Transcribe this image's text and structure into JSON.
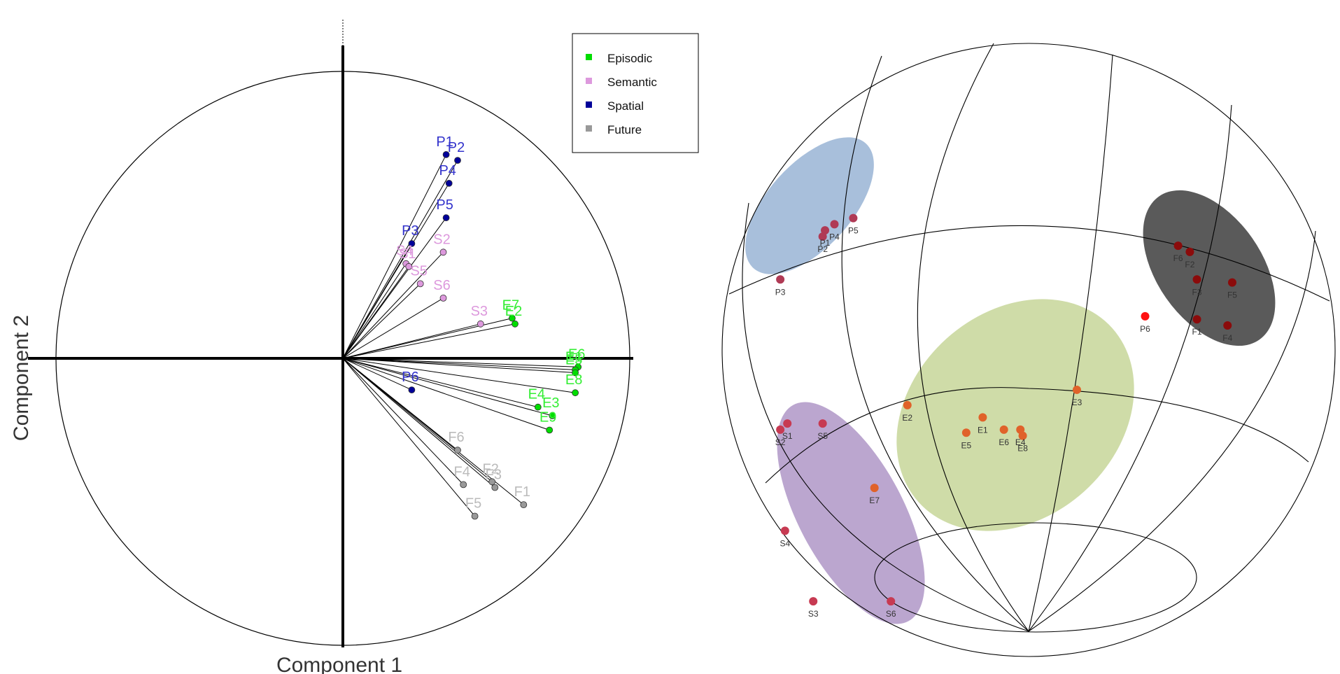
{
  "chart_data": [
    {
      "type": "scatter",
      "xlabel": "Component 1",
      "ylabel": "Component 2",
      "xlim": [
        -1,
        1
      ],
      "ylim": [
        -1,
        1
      ],
      "grid": false,
      "legend": {
        "placement": "top-right",
        "entries": [
          {
            "name": "Episodic",
            "color": "#00dd00"
          },
          {
            "name": "Semantic",
            "color": "#dd99dd"
          },
          {
            "name": "Spatial",
            "color": "#000099"
          },
          {
            "name": "Future",
            "color": "#999999"
          }
        ]
      },
      "series": [
        {
          "name": "Episodic",
          "color": "#00dd00",
          "label_color": "#33ee33",
          "points": [
            {
              "label": "E7",
              "x": 0.59,
              "y": 0.14
            },
            {
              "label": "E2",
              "x": 0.6,
              "y": 0.12
            },
            {
              "label": "E6",
              "x": 0.82,
              "y": -0.03
            },
            {
              "label": "E1",
              "x": 0.81,
              "y": -0.04
            },
            {
              "label": "E5",
              "x": 0.81,
              "y": -0.05
            },
            {
              "label": "E4",
              "x": 0.68,
              "y": -0.17
            },
            {
              "label": "E8",
              "x": 0.81,
              "y": -0.12
            },
            {
              "label": "E3",
              "x": 0.73,
              "y": -0.2
            },
            {
              "label": "E9",
              "x": 0.72,
              "y": -0.25
            }
          ]
        },
        {
          "name": "Semantic",
          "color": "#dd99dd",
          "label_color": "#dd99dd",
          "points": [
            {
              "label": "S2",
              "x": 0.35,
              "y": 0.37
            },
            {
              "label": "S4",
              "x": 0.22,
              "y": 0.33
            },
            {
              "label": "S1",
              "x": 0.23,
              "y": 0.32
            },
            {
              "label": "S5",
              "x": 0.27,
              "y": 0.26
            },
            {
              "label": "S6",
              "x": 0.35,
              "y": 0.21
            },
            {
              "label": "S3",
              "x": 0.48,
              "y": 0.12
            }
          ]
        },
        {
          "name": "Spatial",
          "color": "#000099",
          "label_color": "#3333cc",
          "points": [
            {
              "label": "P1",
              "x": 0.36,
              "y": 0.71
            },
            {
              "label": "P2",
              "x": 0.4,
              "y": 0.69
            },
            {
              "label": "P4",
              "x": 0.37,
              "y": 0.61
            },
            {
              "label": "P5",
              "x": 0.36,
              "y": 0.49
            },
            {
              "label": "P3",
              "x": 0.24,
              "y": 0.4
            },
            {
              "label": "P6",
              "x": 0.24,
              "y": -0.11
            }
          ]
        },
        {
          "name": "Future",
          "color": "#999999",
          "label_color": "#bbbbbb",
          "points": [
            {
              "label": "F6",
              "x": 0.4,
              "y": -0.32
            },
            {
              "label": "F2",
              "x": 0.52,
              "y": -0.43
            },
            {
              "label": "F3",
              "x": 0.53,
              "y": -0.45
            },
            {
              "label": "F4",
              "x": 0.42,
              "y": -0.44
            },
            {
              "label": "F1",
              "x": 0.63,
              "y": -0.51
            },
            {
              "label": "F5",
              "x": 0.46,
              "y": -0.55
            }
          ]
        }
      ]
    },
    {
      "type": "scatter",
      "grid": true,
      "groups": [
        {
          "name": "P",
          "shade": "#a3bcd9"
        },
        {
          "name": "F",
          "shade": "#5a5a5a"
        },
        {
          "name": "E",
          "shade": "#cfdca8"
        },
        {
          "name": "S",
          "shade": "#bba6cf"
        }
      ],
      "points": [
        {
          "label": "P5",
          "x": 0.73,
          "y": 0.78,
          "color": "#b03a55"
        },
        {
          "label": "P4",
          "x": 0.65,
          "y": 0.76,
          "color": "#b03a55"
        },
        {
          "label": "P1",
          "x": 0.61,
          "y": 0.74,
          "color": "#b03a55"
        },
        {
          "label": "P2",
          "x": 0.6,
          "y": 0.72,
          "color": "#b03a55"
        },
        {
          "label": "P3",
          "x": 0.42,
          "y": 0.58,
          "color": "#b03a55"
        },
        {
          "label": "P6",
          "x": 1.97,
          "y": 0.46,
          "color": "#ff1111"
        },
        {
          "label": "F6",
          "x": 2.11,
          "y": 0.69,
          "color": "#8b0b0b"
        },
        {
          "label": "F2",
          "x": 2.16,
          "y": 0.67,
          "color": "#8b0b0b"
        },
        {
          "label": "F3",
          "x": 2.19,
          "y": 0.58,
          "color": "#8b0b0b"
        },
        {
          "label": "F5",
          "x": 2.34,
          "y": 0.57,
          "color": "#8b0b0b"
        },
        {
          "label": "F1",
          "x": 2.19,
          "y": 0.45,
          "color": "#8b0b0b"
        },
        {
          "label": "F4",
          "x": 2.32,
          "y": 0.43,
          "color": "#8b0b0b"
        },
        {
          "label": "E3",
          "x": 1.68,
          "y": 0.22,
          "color": "#e0622a"
        },
        {
          "label": "E2",
          "x": 0.96,
          "y": 0.17,
          "color": "#e0622a"
        },
        {
          "label": "E1",
          "x": 1.28,
          "y": 0.13,
          "color": "#e0622a"
        },
        {
          "label": "E6",
          "x": 1.37,
          "y": 0.09,
          "color": "#e0622a"
        },
        {
          "label": "E4",
          "x": 1.44,
          "y": 0.09,
          "color": "#e0622a"
        },
        {
          "label": "E8",
          "x": 1.45,
          "y": 0.07,
          "color": "#e0622a"
        },
        {
          "label": "E5",
          "x": 1.21,
          "y": 0.08,
          "color": "#e0622a"
        },
        {
          "label": "E7",
          "x": 0.82,
          "y": -0.1,
          "color": "#e0622a"
        },
        {
          "label": "S1",
          "x": 0.45,
          "y": 0.11,
          "color": "#c73a52"
        },
        {
          "label": "S2",
          "x": 0.42,
          "y": 0.09,
          "color": "#c73a52"
        },
        {
          "label": "S5",
          "x": 0.6,
          "y": 0.11,
          "color": "#c73a52"
        },
        {
          "label": "S4",
          "x": 0.44,
          "y": -0.24,
          "color": "#c73a52"
        },
        {
          "label": "S3",
          "x": 0.56,
          "y": -0.47,
          "color": "#c73a52"
        },
        {
          "label": "S6",
          "x": 0.89,
          "y": -0.47,
          "color": "#c73a52"
        }
      ]
    }
  ]
}
